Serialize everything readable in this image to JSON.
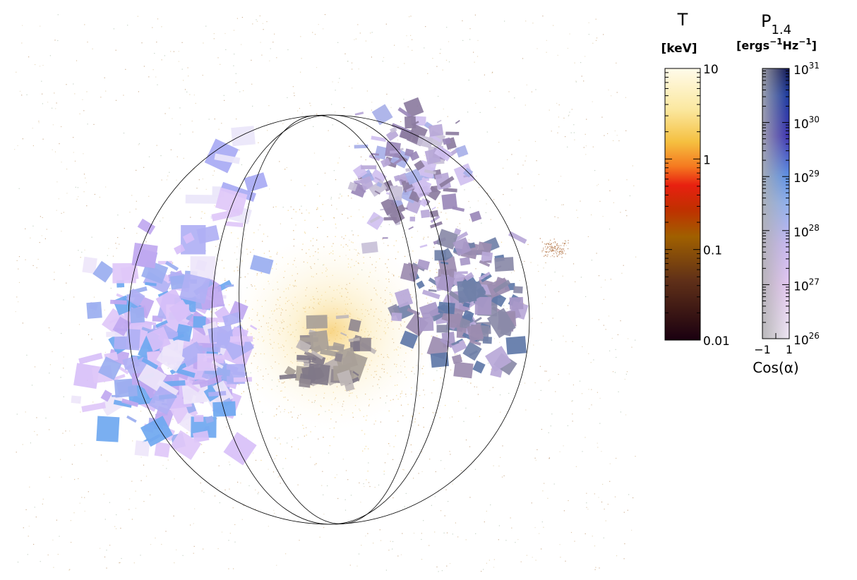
{
  "colorbars": [
    {
      "title": "T",
      "unit": [
        {
          "text": "[keV]"
        }
      ],
      "ticks": [
        {
          "text": "10"
        },
        {
          "text": "1"
        },
        {
          "text": "0.1"
        },
        {
          "text": "0.01"
        }
      ]
    },
    {
      "title": "P",
      "title_sub": "1.4",
      "unit": [
        {
          "text": "[ergs"
        },
        {
          "sup": "−1"
        },
        {
          "text": "Hz"
        },
        {
          "sup": "−1"
        },
        {
          "text": "]"
        }
      ],
      "ticks": [
        {
          "text": "10",
          "sup": "31"
        },
        {
          "text": "10",
          "sup": "30"
        },
        {
          "text": "10",
          "sup": "29"
        },
        {
          "text": "10",
          "sup": "28"
        },
        {
          "text": "10",
          "sup": "27"
        },
        {
          "text": "10",
          "sup": "26"
        }
      ],
      "x_ticks": [
        "−1",
        "1"
      ],
      "x_label": "Cos(α)"
    }
  ]
}
